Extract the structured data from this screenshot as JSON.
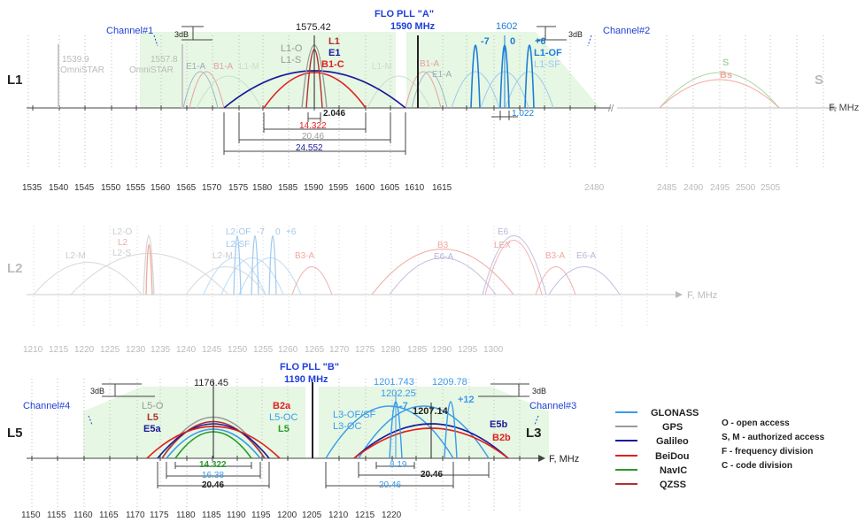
{
  "colors": {
    "glonass": "#3b9bea",
    "gps": "#9a9a9a",
    "galileo": "#1a1a9a",
    "beidou": "#e02020",
    "navic": "#2a9a2a",
    "qzss": "#b03030",
    "channel": "#1f3fd8",
    "fill": "#e6f7e3",
    "axis": "#444444",
    "faded": "#c8c8c8"
  },
  "l1": {
    "band_label": "L1",
    "s_label": "S",
    "axis_unit": "F, MHz",
    "pll_title": "FLO PLL \"A\"",
    "pll_freq": "1590 MHz",
    "channel_left": "Channel#1",
    "channel_right": "Channel#2",
    "db_left": "3dB",
    "db_right": "3dB",
    "gps_center": "1575.42",
    "glonass_center": "1602",
    "omnistar_1_freq": "1539.9",
    "omnistar_1_name": "OmniSTAR",
    "omnistar_2_freq": "1557.8",
    "omnistar_2_name": "OmniSTAR",
    "sig_l1o": "L1-O",
    "sig_l1s": "L1-S",
    "sig_l1": "L1",
    "sig_e1": "E1",
    "sig_b1c": "B1-C",
    "sig_e1a_left": "E1-A",
    "sig_b1a_left": "B1-A",
    "sig_l1m_left": "L1-M",
    "sig_l1m_right": "L1-M",
    "sig_b1a_right": "B1-A",
    "sig_e1a_right": "E1-A",
    "sig_m7": "-7",
    "sig_0": "0",
    "sig_p6": "+6",
    "sig_l1of": "L1-OF",
    "sig_l1sf": "L1-SF",
    "sig_s": "S",
    "sig_bs": "Bs",
    "bw_2046": "2.046",
    "bw_14322": "14.322",
    "bw_2046b": "20.46",
    "bw_24552": "24.552",
    "bw_1022": "1.022",
    "ticks": [
      "1535",
      "1540",
      "1545",
      "1550",
      "1555",
      "1560",
      "1565",
      "1570",
      "1575",
      "1580",
      "1585",
      "1590",
      "1595",
      "1600",
      "1605",
      "1610",
      "1615",
      "2480",
      "2485",
      "2490",
      "2495",
      "2500",
      "2505"
    ]
  },
  "l2": {
    "band_label": "L2",
    "axis_unit": "F, MHz",
    "sig_l2m_left": "L2-M",
    "sig_l2o": "L2-O",
    "sig_l2": "L2",
    "sig_l2s": "L2-S",
    "sig_l2m_mid": "L2-M",
    "sig_l2of": "L2-OF",
    "sig_m7": "-7",
    "sig_0": "0",
    "sig_p6": "+6",
    "sig_l2sf": "L2-SF",
    "sig_b3a_left": "B3-A",
    "sig_b3": "B3",
    "sig_e6a_left": "E6-A",
    "sig_e6": "E6",
    "sig_lex": "LEX",
    "sig_b3a_right": "B3-A",
    "sig_e6a_right": "E6-A",
    "ticks": [
      "1210",
      "1215",
      "1220",
      "1225",
      "1230",
      "1235",
      "1240",
      "1245",
      "1250",
      "1255",
      "1260",
      "1265",
      "1270",
      "1275",
      "1280",
      "1285",
      "1290",
      "1295",
      "1300"
    ]
  },
  "l5": {
    "band_label": "L5",
    "l3_label": "L3",
    "axis_unit": "F, MHz",
    "pll_title": "FLO PLL \"B\"",
    "pll_freq": "1190 MHz",
    "channel_left": "Channel#4",
    "channel_right": "Channel#3",
    "db_left": "3dB",
    "db_right": "3dB",
    "gps_center": "1176.45",
    "sig_l5o": "L5-O",
    "sig_l5": "L5",
    "sig_e5a": "E5a",
    "sig_b2a": "B2a",
    "sig_l5oc": "L5-OC",
    "sig_l5_navic": "L5",
    "bw_14322": "14.322",
    "bw_1638": "16.38",
    "bw_2046": "20.46",
    "f_1201743": "1201.743",
    "f_120225": "1202.25",
    "f_120978": "1209.78",
    "f_120714": "1207.14",
    "sig_m7": "-7",
    "sig_p12": "+12",
    "sig_l3of": "L3-OF/SF",
    "sig_l3oc": "L3-OC",
    "sig_e5b": "E5b",
    "sig_b2b": "B2b",
    "bw_819": "8.19",
    "bw_2046r": "20.46",
    "bw_2046r2": "20.46",
    "ticks": [
      "1150",
      "1155",
      "1160",
      "1165",
      "1170",
      "1175",
      "1180",
      "1185",
      "1190",
      "1195",
      "1200",
      "1205",
      "1210",
      "1215",
      "1220"
    ]
  },
  "legend": {
    "items": [
      {
        "label": "GLONASS",
        "color": "#3b9bea"
      },
      {
        "label": "GPS",
        "color": "#9a9a9a"
      },
      {
        "label": "Galileo",
        "color": "#1a1a9a"
      },
      {
        "label": "BeiDou",
        "color": "#e02020"
      },
      {
        "label": "NavIC",
        "color": "#2a9a2a"
      },
      {
        "label": "QZSS",
        "color": "#b03030"
      }
    ],
    "notes": [
      "O - open access",
      "S, M - authorized access",
      "F - frequency division",
      "C - code division"
    ]
  }
}
